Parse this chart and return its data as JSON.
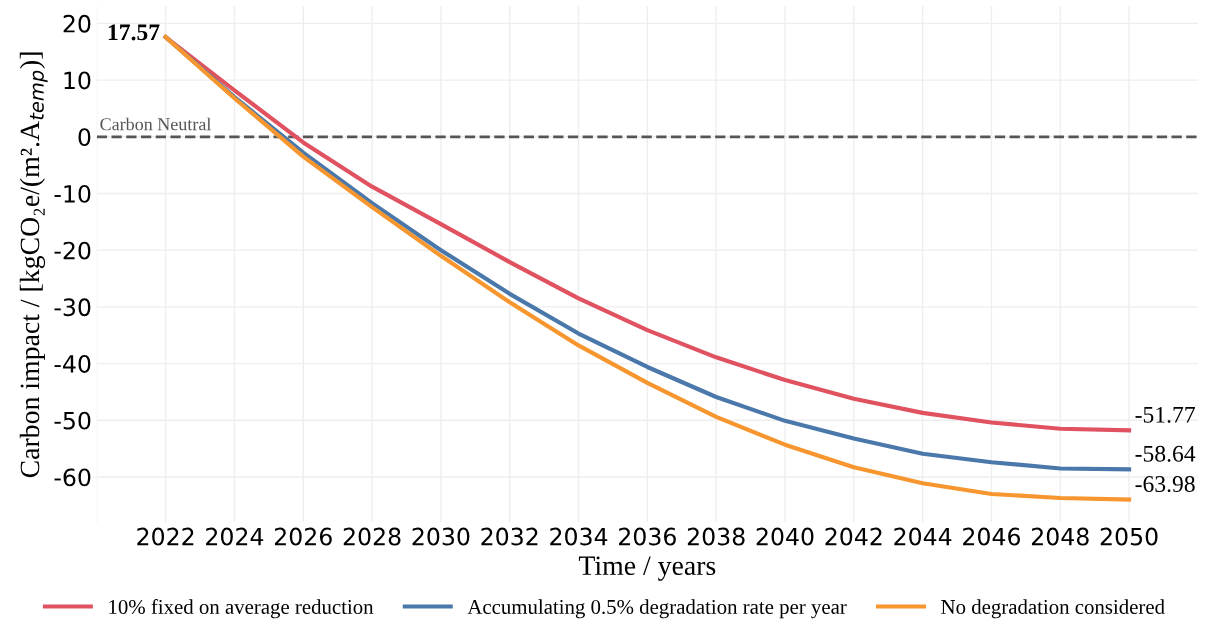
{
  "chart_data": {
    "type": "line",
    "xlabel": "Time / years",
    "ylabel": "Carbon impact / [kgCO₂e/(m².A$_{temp}$)]",
    "x": [
      2022,
      2024,
      2026,
      2028,
      2030,
      2032,
      2034,
      2036,
      2038,
      2040,
      2042,
      2044,
      2046,
      2048,
      2050
    ],
    "xlim": [
      2020,
      2052
    ],
    "xticks": [
      {
        "value": 2020,
        "label": null
      },
      2022,
      2024,
      2026,
      2028,
      2030,
      2032,
      2034,
      2036,
      2038,
      2040,
      2042,
      2044,
      2046,
      2048,
      2050
    ],
    "ylim": [
      -68,
      23
    ],
    "yticks": [
      -60,
      -50,
      -40,
      -30,
      -20,
      -10,
      0,
      10,
      20
    ],
    "grid": true,
    "legend": "bottom",
    "marker": "none",
    "line_style": "solid",
    "ref_lines": [
      {
        "axis": "y",
        "value": 0,
        "label": "Carbon Neutral",
        "color": "#555555",
        "line_style": "dashed"
      }
    ],
    "series": [
      {
        "name": "10% fixed on average reduction",
        "color": "#e05260",
        "values": [
          17.57,
          8.2,
          -1.0,
          -8.8,
          -15.4,
          -22.1,
          -28.5,
          -34.1,
          -38.9,
          -42.9,
          -46.2,
          -48.7,
          -50.4,
          -51.5,
          -51.77
        ],
        "value_labels": [
          "17.57",
          null,
          null,
          null,
          null,
          null,
          null,
          null,
          null,
          null,
          null,
          null,
          null,
          null,
          "-51.77"
        ]
      },
      {
        "name": "Accumulating 0.5% degradation rate per year",
        "color": "#4a78aa",
        "values": [
          17.6,
          7.0,
          -2.8,
          -11.7,
          -20.0,
          -27.7,
          -34.7,
          -40.6,
          -45.9,
          -50.1,
          -53.2,
          -55.9,
          -57.4,
          -58.5,
          -58.64
        ],
        "value_labels": [
          null,
          null,
          null,
          null,
          null,
          null,
          null,
          null,
          null,
          null,
          null,
          null,
          null,
          null,
          "-58.64"
        ]
      },
      {
        "name": "No degradation considered",
        "color": "#f7962e",
        "values": [
          17.6,
          6.8,
          -3.5,
          -12.4,
          -21.0,
          -29.2,
          -36.8,
          -43.4,
          -49.4,
          -54.3,
          -58.3,
          -61.1,
          -63.0,
          -63.7,
          -63.98
        ],
        "value_labels": [
          null,
          null,
          null,
          null,
          null,
          null,
          null,
          null,
          null,
          null,
          null,
          null,
          null,
          null,
          "-63.98"
        ]
      }
    ]
  }
}
